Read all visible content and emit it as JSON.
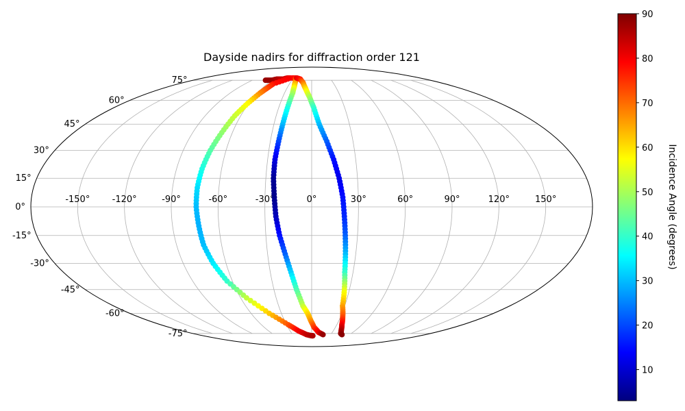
{
  "chart_data": {
    "type": "scatter",
    "projection": "mollweide",
    "title": "Dayside nadirs for diffraction order 121",
    "lon_ticks": [
      "-150°",
      "-120°",
      "-90°",
      "-60°",
      "-30°",
      "0°",
      "30°",
      "60°",
      "90°",
      "120°",
      "150°"
    ],
    "lat_ticks": [
      "75°",
      "60°",
      "45°",
      "30°",
      "15°",
      "0°",
      "-15°",
      "-30°",
      "-45°",
      "-60°",
      "-75°"
    ],
    "grid": true,
    "colorbar": {
      "label": "Incidence Angle (degrees)",
      "min": 3,
      "max": 90,
      "colormap": "jet",
      "ticks": [
        "10",
        "20",
        "30",
        "40",
        "50",
        "60",
        "70",
        "80",
        "90"
      ]
    },
    "series": [
      {
        "points": [
          [
            -70,
            75,
            88
          ],
          [
            -60,
            75,
            88
          ],
          [
            -55,
            76,
            86
          ],
          [
            -50,
            76,
            85
          ],
          [
            -45,
            76,
            84
          ],
          [
            -40,
            77,
            82
          ],
          [
            -35,
            77,
            80
          ],
          [
            -52,
            72,
            78
          ],
          [
            -54,
            69,
            74
          ],
          [
            -57,
            65,
            68
          ],
          [
            -61,
            58,
            58
          ],
          [
            -65,
            50,
            53
          ],
          [
            -68,
            40,
            48
          ],
          [
            -71,
            30,
            43
          ],
          [
            -73,
            20,
            38
          ],
          [
            -74,
            10,
            33
          ],
          [
            -74,
            0,
            30
          ],
          [
            -73,
            -10,
            29
          ],
          [
            -72,
            -20,
            30
          ],
          [
            -69,
            -30,
            34
          ],
          [
            -64,
            -40,
            40
          ],
          [
            -55,
            -50,
            52
          ],
          [
            -42,
            -60,
            62
          ],
          [
            -28,
            -68,
            72
          ],
          [
            -18,
            -73,
            80
          ],
          [
            -8,
            -76,
            84
          ],
          [
            0,
            -77,
            86
          ],
          [
            2,
            -77,
            86
          ]
        ]
      },
      {
        "points": [
          [
            -32,
            77,
            80
          ],
          [
            -27,
            77,
            78
          ],
          [
            -24,
            75,
            70
          ],
          [
            -22,
            70,
            60
          ],
          [
            -21,
            65,
            50
          ],
          [
            -22,
            55,
            38
          ],
          [
            -23,
            45,
            30
          ],
          [
            -24,
            35,
            20
          ],
          [
            -25,
            25,
            12
          ],
          [
            -25,
            15,
            5
          ],
          [
            -24,
            5,
            4
          ],
          [
            -23,
            -5,
            8
          ],
          [
            -21,
            -15,
            15
          ],
          [
            -18,
            -25,
            22
          ],
          [
            -15,
            -35,
            32
          ],
          [
            -12,
            -45,
            42
          ],
          [
            -8,
            -55,
            52
          ],
          [
            -4,
            -60,
            60
          ],
          [
            -1,
            -65,
            66
          ],
          [
            3,
            -70,
            74
          ],
          [
            10,
            -74,
            80
          ],
          [
            18,
            -76,
            88
          ]
        ]
      },
      {
        "points": [
          [
            -25,
            77,
            82
          ],
          [
            -18,
            76,
            78
          ],
          [
            -12,
            73,
            70
          ],
          [
            -7,
            68,
            60
          ],
          [
            -2,
            62,
            50
          ],
          [
            2,
            55,
            40
          ],
          [
            6,
            45,
            30
          ],
          [
            11,
            35,
            22
          ],
          [
            15,
            25,
            15
          ],
          [
            18,
            15,
            12
          ],
          [
            20,
            5,
            15
          ],
          [
            21,
            -5,
            17
          ],
          [
            22,
            -15,
            22
          ],
          [
            23,
            -25,
            30
          ],
          [
            24,
            -35,
            40
          ],
          [
            26,
            -45,
            55
          ],
          [
            28,
            -55,
            65
          ],
          [
            32,
            -62,
            72
          ],
          [
            36,
            -68,
            80
          ],
          [
            40,
            -72,
            85
          ],
          [
            44,
            -75,
            88
          ],
          [
            48,
            -76,
            89
          ]
        ]
      }
    ]
  }
}
